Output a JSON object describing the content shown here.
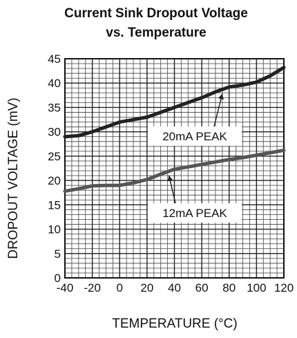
{
  "chart_data": {
    "type": "line",
    "title_lines": [
      "Current Sink Dropout Voltage",
      "vs. Temperature"
    ],
    "xlabel": "TEMPERATURE (°C)",
    "ylabel": "DROPOUT VOLTAGE (mV)",
    "xlim": [
      -40,
      120
    ],
    "ylim": [
      0,
      45
    ],
    "x_ticks": [
      -40,
      -20,
      0,
      20,
      40,
      60,
      80,
      100,
      120
    ],
    "y_ticks": [
      0,
      5,
      10,
      15,
      20,
      25,
      30,
      35,
      40,
      45
    ],
    "x_tick_labels": [
      "-40",
      "-20",
      "0",
      "20",
      "40",
      "60",
      "80",
      "100",
      "120"
    ],
    "y_tick_labels": [
      "0",
      "5",
      "10",
      "15",
      "20",
      "25",
      "30",
      "35",
      "40",
      "45"
    ],
    "grid": true,
    "series": [
      {
        "name": "20mA PEAK",
        "color": "#222222",
        "x": [
          -40,
          -30,
          -20,
          -10,
          0,
          10,
          20,
          30,
          40,
          50,
          60,
          70,
          80,
          90,
          100,
          110,
          120
        ],
        "y": [
          29,
          29.2,
          30,
          31,
          32,
          32.5,
          33,
          34,
          35,
          36,
          37,
          38.2,
          39.2,
          39.6,
          40.2,
          41.5,
          43.2
        ]
      },
      {
        "name": "12mA PEAK",
        "color": "#555555",
        "x": [
          -40,
          -30,
          -20,
          -10,
          0,
          10,
          20,
          30,
          40,
          50,
          60,
          70,
          80,
          90,
          100,
          110,
          120
        ],
        "y": [
          17.8,
          18.3,
          18.9,
          19,
          19,
          19.5,
          20.2,
          21.3,
          22.3,
          22.8,
          23.3,
          23.8,
          24.3,
          24.7,
          25.2,
          25.7,
          26.2
        ]
      }
    ],
    "annotations": [
      {
        "text": "20mA PEAK",
        "series": 0,
        "x": 75
      },
      {
        "text": "12mA PEAK",
        "series": 1,
        "x": 36
      }
    ]
  }
}
